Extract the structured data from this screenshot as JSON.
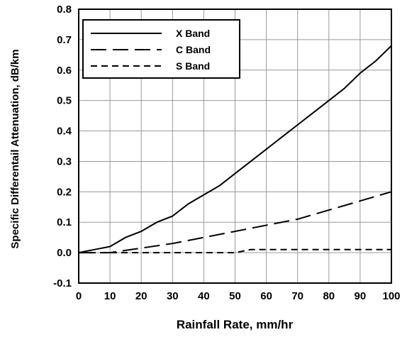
{
  "chart_data": {
    "type": "line",
    "title": "",
    "xlabel": "Rainfall Rate, mm/hr",
    "ylabel": "Specific Differentail Attenuation, dB/km",
    "xlim": [
      0,
      100
    ],
    "ylim": [
      -0.1,
      0.8
    ],
    "xticks": [
      0,
      10,
      20,
      30,
      40,
      50,
      60,
      70,
      80,
      90,
      100
    ],
    "yticks": [
      -0.1,
      0.0,
      0.1,
      0.2,
      0.3,
      0.4,
      0.5,
      0.6,
      0.7,
      0.8
    ],
    "xtick_labels": [
      "0",
      "10",
      "20",
      "30",
      "40",
      "50",
      "60",
      "70",
      "80",
      "90",
      "100"
    ],
    "ytick_labels": [
      "-0.1",
      "0.0",
      "0.1",
      "0.2",
      "0.3",
      "0.4",
      "0.5",
      "0.6",
      "0.7",
      "0.8"
    ],
    "grid": true,
    "legend_position": "top-left",
    "series": [
      {
        "name": "X Band",
        "dash": "solid",
        "x": [
          0,
          5,
          10,
          15,
          20,
          25,
          30,
          35,
          40,
          45,
          50,
          55,
          60,
          65,
          70,
          75,
          80,
          85,
          90,
          95,
          100
        ],
        "y": [
          0.0,
          0.01,
          0.02,
          0.05,
          0.07,
          0.1,
          0.12,
          0.16,
          0.19,
          0.22,
          0.26,
          0.3,
          0.34,
          0.38,
          0.42,
          0.46,
          0.5,
          0.54,
          0.59,
          0.63,
          0.68
        ]
      },
      {
        "name": "C Band",
        "dash": "long-dash",
        "x": [
          0,
          10,
          20,
          30,
          40,
          50,
          60,
          70,
          80,
          90,
          100
        ],
        "y": [
          0.0,
          0.0,
          0.015,
          0.03,
          0.05,
          0.07,
          0.09,
          0.11,
          0.14,
          0.17,
          0.2
        ]
      },
      {
        "name": "S Band",
        "dash": "short-dash",
        "x": [
          0,
          10,
          20,
          30,
          40,
          50,
          55,
          60,
          70,
          80,
          90,
          100
        ],
        "y": [
          0.0,
          0.0,
          0.0,
          0.0,
          0.0,
          0.0,
          0.01,
          0.01,
          0.01,
          0.01,
          0.01,
          0.01
        ]
      }
    ]
  }
}
